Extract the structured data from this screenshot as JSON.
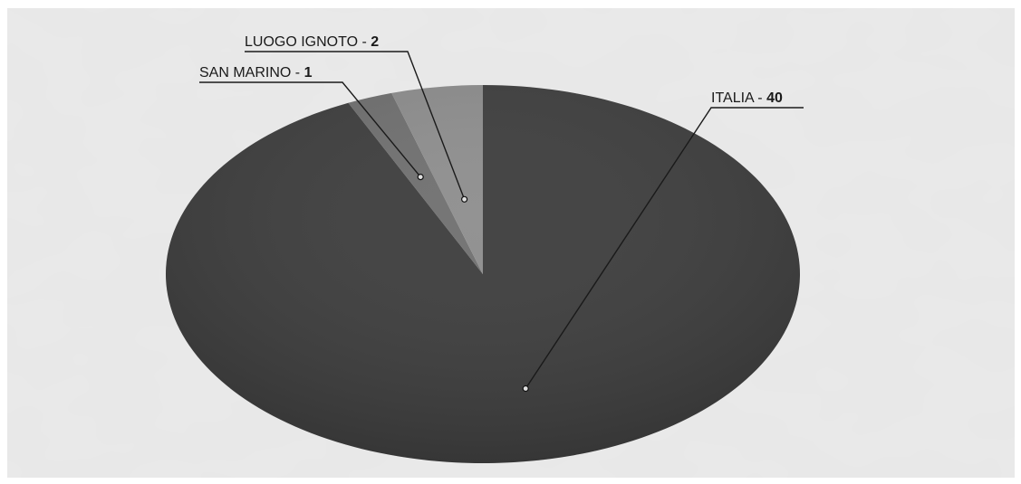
{
  "chart_data": {
    "type": "pie",
    "title": "",
    "slices": [
      {
        "label": "ITALIA",
        "value": 40,
        "color": "#3a3a3a"
      },
      {
        "label": "SAN MARINO",
        "value": 1,
        "color": "#6d6d6d"
      },
      {
        "label": "LUOGO IGNOTO",
        "value": 2,
        "color": "#8c8c8c"
      }
    ],
    "separator": " - ",
    "style": "3d-tilted",
    "background": "textured-gray"
  }
}
